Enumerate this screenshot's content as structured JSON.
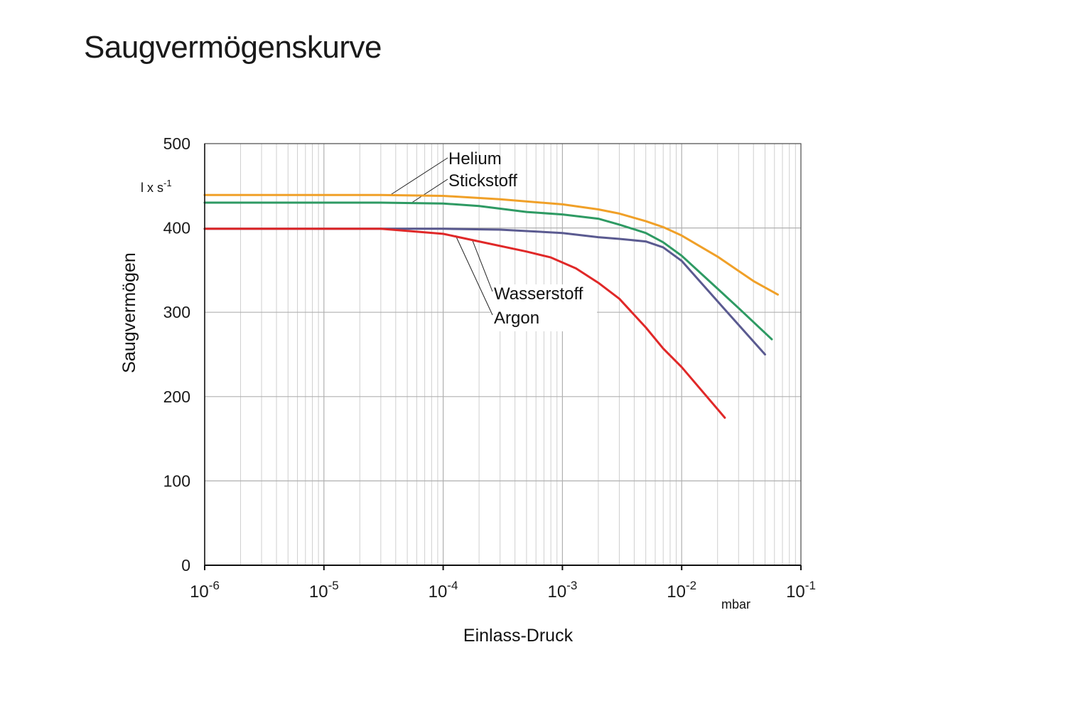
{
  "page": {
    "title": "Saugvermögenskurve"
  },
  "chart_data": {
    "type": "line",
    "xscale": "log",
    "xlim": [
      1e-06,
      0.1
    ],
    "ylim": [
      0,
      500
    ],
    "xlabel": "Einlass-Druck",
    "xunit": "mbar",
    "ylabel": "Saugvermögen",
    "yunit": {
      "base": "l x s",
      "exp": "-1"
    },
    "xticks": [
      {
        "base": "10",
        "exp": "-6",
        "value": 1e-06
      },
      {
        "base": "10",
        "exp": "-5",
        "value": 1e-05
      },
      {
        "base": "10",
        "exp": "-4",
        "value": 0.0001
      },
      {
        "base": "10",
        "exp": "-3",
        "value": 0.001
      },
      {
        "base": "10",
        "exp": "-2",
        "value": 0.01
      },
      {
        "base": "10",
        "exp": "-1",
        "value": 0.1
      }
    ],
    "yticks": [
      0,
      100,
      200,
      300,
      400,
      500
    ],
    "grid": true,
    "series": [
      {
        "name": "Helium",
        "color": "#f0a028",
        "x": [
          1e-06,
          1e-05,
          3e-05,
          0.0001,
          0.0003,
          0.001,
          0.002,
          0.003,
          0.005,
          0.007,
          0.01,
          0.02,
          0.04,
          0.064
        ],
        "y": [
          439,
          439,
          439,
          438,
          434,
          428,
          422,
          417,
          408,
          401,
          391,
          366,
          337,
          321
        ]
      },
      {
        "name": "Stickstoff",
        "color": "#2e9a63",
        "x": [
          1e-06,
          1e-05,
          3e-05,
          0.0001,
          0.0002,
          0.0005,
          0.001,
          0.002,
          0.003,
          0.005,
          0.007,
          0.01,
          0.02,
          0.03,
          0.057
        ],
        "y": [
          430,
          430,
          430,
          429,
          426,
          419,
          416,
          411,
          404,
          394,
          383,
          367,
          328,
          305,
          268
        ]
      },
      {
        "name": "Wasserstoff",
        "color": "#5a5a90",
        "x": [
          1e-06,
          1e-05,
          0.0001,
          0.0003,
          0.001,
          0.002,
          0.003,
          0.005,
          0.007,
          0.01,
          0.02,
          0.05
        ],
        "y": [
          399,
          399,
          399,
          398,
          394,
          389,
          387,
          384,
          377,
          361,
          313,
          250
        ]
      },
      {
        "name": "Argon",
        "color": "#e02828",
        "x": [
          1e-06,
          1e-05,
          3e-05,
          0.0001,
          0.0002,
          0.0005,
          0.0008,
          0.0013,
          0.002,
          0.003,
          0.005,
          0.007,
          0.01,
          0.023
        ],
        "y": [
          399,
          399,
          399,
          393,
          384,
          372,
          365,
          352,
          335,
          316,
          282,
          257,
          235,
          175
        ]
      }
    ],
    "annotations": [
      {
        "text": "Helium",
        "series": "Helium"
      },
      {
        "text": "Stickstoff",
        "series": "Stickstoff"
      },
      {
        "text": "Wasserstoff",
        "series": "Wasserstoff"
      },
      {
        "text": "Argon",
        "series": "Argon"
      }
    ]
  }
}
